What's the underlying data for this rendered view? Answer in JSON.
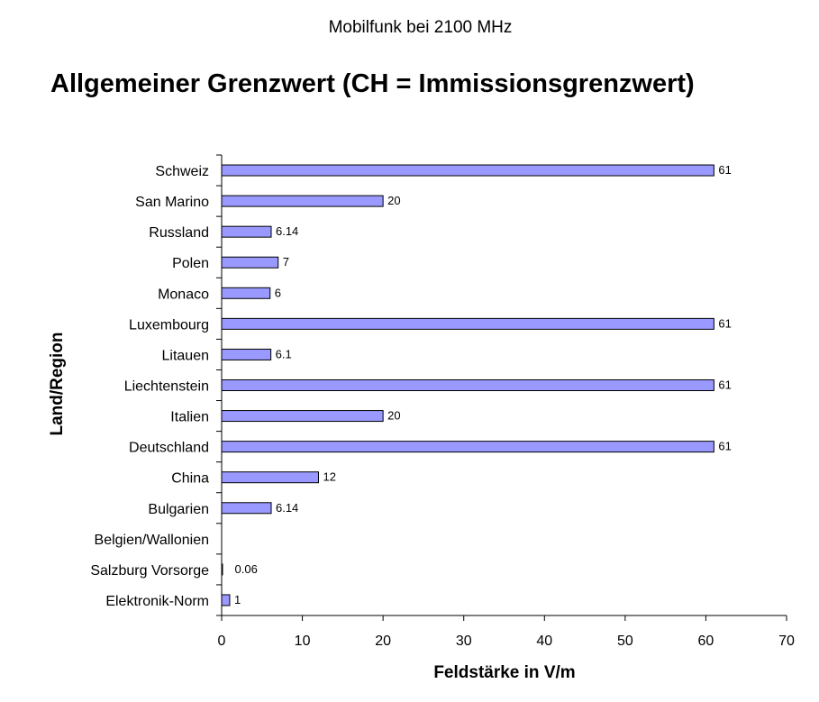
{
  "chart_data": {
    "type": "bar",
    "orientation": "horizontal",
    "subtitle": "Mobilfunk bei 2100 MHz",
    "title": "Allgemeiner Grenzwert (CH = Immissionsgrenzwert)",
    "xlabel": "Feldstärke in V/m",
    "ylabel": "Land/Region",
    "xlim": [
      0,
      70
    ],
    "xticks": [
      0,
      10,
      20,
      30,
      40,
      50,
      60,
      70
    ],
    "grid": false,
    "bar_color": "#9999ff",
    "categories": [
      "Schweiz",
      "San Marino",
      "Russland",
      "Polen",
      "Monaco",
      "Luxembourg",
      "Litauen",
      "Liechtenstein",
      "Italien",
      "Deutschland",
      "China",
      "Bulgarien",
      "Belgien/Wallonien",
      "Salzburg Vorsorge",
      "Elektronik-Norm"
    ],
    "values": [
      61,
      20,
      6.14,
      7,
      6,
      61,
      6.1,
      61,
      20,
      61,
      12,
      6.14,
      null,
      0.06,
      1
    ],
    "data_labels": [
      "61",
      "20",
      "6.14",
      "7",
      "6",
      "61",
      "6.1",
      "61",
      "20",
      "61",
      "12",
      "6.14",
      "",
      "0.06",
      "1"
    ]
  }
}
